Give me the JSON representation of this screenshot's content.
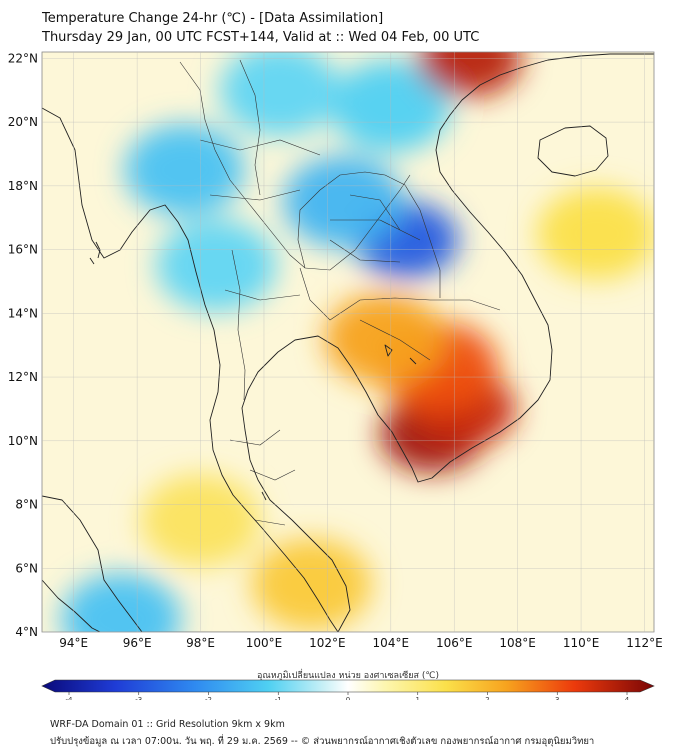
{
  "title": {
    "line1": "Temperature Change 24-hr (℃) - [Data Assimilation]",
    "line2": "Thursday 29 Jan, 00 UTC FCST+144, Valid at :: Wed 04 Feb, 00 UTC"
  },
  "map": {
    "lon_range": [
      93,
      112.3
    ],
    "lat_range": [
      4,
      22.2
    ],
    "lat_ticks": [
      "22°N",
      "20°N",
      "18°N",
      "16°N",
      "14°N",
      "12°N",
      "10°N",
      "8°N",
      "6°N",
      "4°N"
    ],
    "lat_values": [
      22,
      20,
      18,
      16,
      14,
      12,
      10,
      8,
      6,
      4
    ],
    "lon_ticks": [
      "94°E",
      "96°E",
      "98°E",
      "100°E",
      "102°E",
      "104°E",
      "106°E",
      "108°E",
      "110°E",
      "112°E"
    ],
    "lon_values": [
      94,
      96,
      98,
      100,
      102,
      104,
      106,
      108,
      110,
      112
    ],
    "field_features": [
      {
        "kind": "cold",
        "lon": 104.5,
        "lat": 16.3,
        "value": -2.6
      },
      {
        "kind": "cold",
        "lon": 102.5,
        "lat": 17.5,
        "value": -1.4
      },
      {
        "kind": "cold",
        "lon": 97.5,
        "lat": 18.5,
        "value": -1.2
      },
      {
        "kind": "cold",
        "lon": 98.5,
        "lat": 15.5,
        "value": -0.9
      },
      {
        "kind": "cold",
        "lon": 104.0,
        "lat": 20.5,
        "value": -1.0
      },
      {
        "kind": "cold",
        "lon": 100.5,
        "lat": 21.0,
        "value": -0.9
      },
      {
        "kind": "cold",
        "lon": 95.5,
        "lat": 4.4,
        "value": -1.2
      },
      {
        "kind": "warm",
        "lon": 105.3,
        "lat": 10.2,
        "value": 3.5
      },
      {
        "kind": "warm",
        "lon": 106.3,
        "lat": 11.0,
        "value": 3.0
      },
      {
        "kind": "warm",
        "lon": 105.5,
        "lat": 12.3,
        "value": 2.3
      },
      {
        "kind": "warm",
        "lon": 103.8,
        "lat": 13.2,
        "value": 1.5
      },
      {
        "kind": "warm",
        "lon": 106.5,
        "lat": 22.0,
        "value": 3.2
      },
      {
        "kind": "warm",
        "lon": 101.5,
        "lat": 5.5,
        "value": 1.0
      },
      {
        "kind": "warm",
        "lon": 98.0,
        "lat": 7.5,
        "value": 0.6
      },
      {
        "kind": "warm",
        "lon": 110.5,
        "lat": 16.5,
        "value": 0.7
      }
    ]
  },
  "colorbar": {
    "label": "อุณหภูมิเปลี่ยนแปลง หน่วย องศาเซลเซียส (℃)",
    "ticks": [
      "-4",
      "-3",
      "-2",
      "-1",
      "0",
      "1",
      "2",
      "3",
      "4"
    ],
    "tick_values": [
      -4,
      -3,
      -2,
      -1,
      0,
      1,
      2,
      3,
      4
    ],
    "min": -4,
    "max": 4
  },
  "footer": {
    "line1": "WRF-DA Domain 01 :: Grid Resolution 9km x 9km",
    "line2": "ปรับปรุงข้อมูล ณ เวลา 07:00น. วัน พฤ. ที่ 29 ม.ค. 2569 -- © ส่วนพยากรณ์อากาศเชิงตัวเลข กองพยากรณ์อากาศ กรมอุตุนิยมวิทยา"
  },
  "colors": {
    "ocean_base": "#fdf7d8",
    "cold_deep": "#1d4fe0",
    "warm_deep": "#e01a00",
    "coastline": "#222222"
  }
}
